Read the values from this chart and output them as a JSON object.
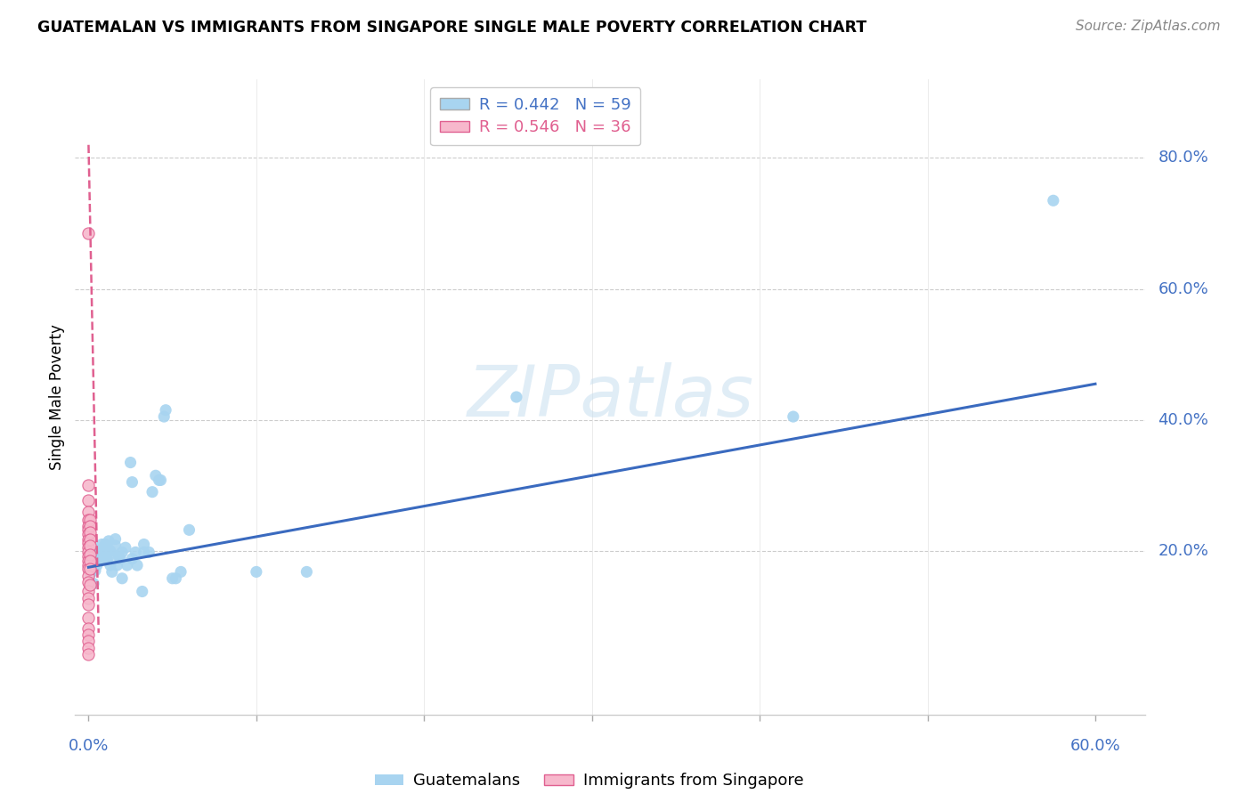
{
  "title": "GUATEMALAN VS IMMIGRANTS FROM SINGAPORE SINGLE MALE POVERTY CORRELATION CHART",
  "source": "Source: ZipAtlas.com",
  "ylabel": "Single Male Poverty",
  "right_yticks": [
    "80.0%",
    "60.0%",
    "40.0%",
    "20.0%"
  ],
  "right_ytick_vals": [
    0.8,
    0.6,
    0.4,
    0.2
  ],
  "xlim": [
    -0.008,
    0.63
  ],
  "ylim": [
    -0.05,
    0.92
  ],
  "watermark": "ZIPatlas",
  "blue_color": "#a8d4f0",
  "blue_dark": "#3a6abf",
  "pink_color": "#f7b8cc",
  "pink_dark": "#e06090",
  "blue_scatter": [
    [
      0.001,
      0.165
    ],
    [
      0.002,
      0.175
    ],
    [
      0.002,
      0.185
    ],
    [
      0.003,
      0.15
    ],
    [
      0.003,
      0.185
    ],
    [
      0.004,
      0.195
    ],
    [
      0.004,
      0.17
    ],
    [
      0.005,
      0.19
    ],
    [
      0.005,
      0.178
    ],
    [
      0.006,
      0.2
    ],
    [
      0.006,
      0.185
    ],
    [
      0.007,
      0.198
    ],
    [
      0.007,
      0.188
    ],
    [
      0.008,
      0.21
    ],
    [
      0.008,
      0.195
    ],
    [
      0.009,
      0.205
    ],
    [
      0.009,
      0.188
    ],
    [
      0.01,
      0.21
    ],
    [
      0.01,
      0.195
    ],
    [
      0.011,
      0.205
    ],
    [
      0.011,
      0.188
    ],
    [
      0.012,
      0.215
    ],
    [
      0.013,
      0.178
    ],
    [
      0.013,
      0.2
    ],
    [
      0.014,
      0.168
    ],
    [
      0.014,
      0.195
    ],
    [
      0.016,
      0.218
    ],
    [
      0.016,
      0.208
    ],
    [
      0.017,
      0.178
    ],
    [
      0.018,
      0.192
    ],
    [
      0.019,
      0.188
    ],
    [
      0.02,
      0.198
    ],
    [
      0.02,
      0.158
    ],
    [
      0.022,
      0.205
    ],
    [
      0.023,
      0.178
    ],
    [
      0.025,
      0.335
    ],
    [
      0.026,
      0.305
    ],
    [
      0.026,
      0.188
    ],
    [
      0.028,
      0.198
    ],
    [
      0.029,
      0.178
    ],
    [
      0.032,
      0.138
    ],
    [
      0.033,
      0.21
    ],
    [
      0.033,
      0.198
    ],
    [
      0.036,
      0.198
    ],
    [
      0.038,
      0.29
    ],
    [
      0.04,
      0.315
    ],
    [
      0.042,
      0.308
    ],
    [
      0.043,
      0.308
    ],
    [
      0.045,
      0.405
    ],
    [
      0.046,
      0.415
    ],
    [
      0.05,
      0.158
    ],
    [
      0.052,
      0.158
    ],
    [
      0.055,
      0.168
    ],
    [
      0.06,
      0.232
    ],
    [
      0.1,
      0.168
    ],
    [
      0.13,
      0.168
    ],
    [
      0.255,
      0.435
    ],
    [
      0.42,
      0.405
    ],
    [
      0.575,
      0.735
    ]
  ],
  "pink_scatter": [
    [
      0.0,
      0.685
    ],
    [
      0.0,
      0.3
    ],
    [
      0.0,
      0.278
    ],
    [
      0.0,
      0.26
    ],
    [
      0.0,
      0.248
    ],
    [
      0.0,
      0.238
    ],
    [
      0.0,
      0.232
    ],
    [
      0.0,
      0.225
    ],
    [
      0.0,
      0.218
    ],
    [
      0.0,
      0.212
    ],
    [
      0.0,
      0.205
    ],
    [
      0.0,
      0.198
    ],
    [
      0.0,
      0.192
    ],
    [
      0.0,
      0.185
    ],
    [
      0.0,
      0.178
    ],
    [
      0.0,
      0.172
    ],
    [
      0.0,
      0.162
    ],
    [
      0.0,
      0.152
    ],
    [
      0.0,
      0.138
    ],
    [
      0.0,
      0.128
    ],
    [
      0.0,
      0.118
    ],
    [
      0.0,
      0.098
    ],
    [
      0.0,
      0.082
    ],
    [
      0.0,
      0.072
    ],
    [
      0.0,
      0.062
    ],
    [
      0.0,
      0.052
    ],
    [
      0.0,
      0.042
    ],
    [
      0.001,
      0.248
    ],
    [
      0.001,
      0.238
    ],
    [
      0.001,
      0.228
    ],
    [
      0.001,
      0.218
    ],
    [
      0.001,
      0.208
    ],
    [
      0.001,
      0.195
    ],
    [
      0.001,
      0.185
    ],
    [
      0.001,
      0.172
    ],
    [
      0.001,
      0.148
    ]
  ],
  "blue_line_x": [
    0.0,
    0.6
  ],
  "blue_line_y": [
    0.175,
    0.455
  ],
  "pink_line_x": [
    0.0,
    0.006
  ],
  "pink_line_y": [
    0.82,
    0.075
  ]
}
